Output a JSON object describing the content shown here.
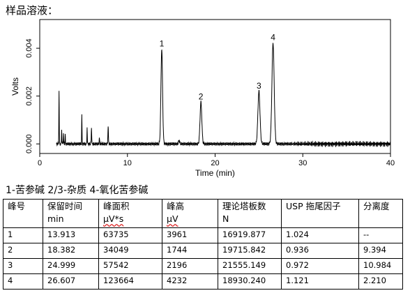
{
  "sample_label": "样品溶液：",
  "legend_text": "1-苦参碱 2/3-杂质 4-氧化苦参碱",
  "chart_data": {
    "type": "line",
    "title": "",
    "xlabel": "Time (min)",
    "ylabel": "Volts",
    "xlim": [
      0,
      40
    ],
    "ylim": [
      -0.0004,
      0.0052
    ],
    "x_ticks": [
      0,
      10,
      20,
      30,
      40
    ],
    "y_ticks": [
      0.0,
      0.002,
      0.004
    ],
    "y_tick_labels": [
      "0.000",
      "0.002",
      "0.004"
    ],
    "grid": false,
    "baseline": 0.0,
    "peaks": [
      {
        "label": "1",
        "rt": 13.913,
        "height": 0.00396,
        "width": 0.22
      },
      {
        "label": "2",
        "rt": 18.382,
        "height": 0.00174,
        "width": 0.24
      },
      {
        "label": "3",
        "rt": 24.999,
        "height": 0.0022,
        "width": 0.28
      },
      {
        "label": "4",
        "rt": 26.607,
        "height": 0.00423,
        "width": 0.3
      }
    ],
    "minor_peaks": [
      {
        "rt": 2.2,
        "height": 0.00225,
        "width": 0.05
      },
      {
        "rt": 2.5,
        "height": 0.0006,
        "width": 0.05
      },
      {
        "rt": 2.7,
        "height": 0.00045,
        "width": 0.05
      },
      {
        "rt": 2.9,
        "height": 0.0004,
        "width": 0.05
      },
      {
        "rt": 4.8,
        "height": 0.0012,
        "width": 0.05
      },
      {
        "rt": 5.4,
        "height": 0.0007,
        "width": 0.05
      },
      {
        "rt": 5.9,
        "height": 0.0007,
        "width": 0.06
      },
      {
        "rt": 6.8,
        "height": 0.00025,
        "width": 0.06
      },
      {
        "rt": 7.8,
        "height": 0.00075,
        "width": 0.07
      },
      {
        "rt": 15.9,
        "height": 0.00015,
        "width": 0.15
      }
    ]
  },
  "table": {
    "headers": [
      {
        "line1": "峰号",
        "line2": ""
      },
      {
        "line1": "保留时间",
        "line2": "min"
      },
      {
        "line1": "峰面积",
        "line2": "μV*s"
      },
      {
        "line1": "峰高",
        "line2": "μV"
      },
      {
        "line1": "理论塔板数",
        "line2": "N"
      },
      {
        "line1": "USP 拖尾因子",
        "line2": ""
      },
      {
        "line1": "分离度",
        "line2": ""
      }
    ],
    "rows": [
      [
        "1",
        "13.913",
        "63735",
        "3961",
        "16919.877",
        "1.024",
        "--"
      ],
      [
        "2",
        "18.382",
        "34049",
        "1744",
        "19715.842",
        "0.936",
        "9.394"
      ],
      [
        "3",
        "24.999",
        "57542",
        "2196",
        "21555.149",
        "0.972",
        "10.984"
      ],
      [
        "4",
        "26.607",
        "123664",
        "4232",
        "18930.240",
        "1.121",
        "2.210"
      ]
    ]
  }
}
